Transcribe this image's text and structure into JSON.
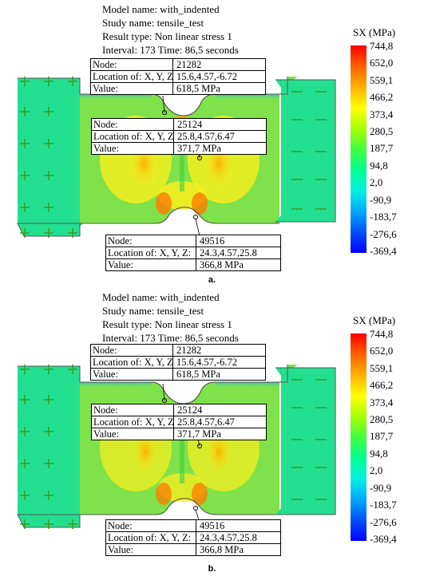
{
  "panels": [
    {
      "header": {
        "model": "Model name: with_indented",
        "study": "Study name: tensile_test",
        "result": "Result type: Non linear stress 1",
        "interval": "Interval: 173 Time: 86,5 seconds"
      },
      "legend": {
        "title": "SX (MPa)",
        "ticks": [
          "744,8",
          "652,0",
          "559,1",
          "466,2",
          "373,4",
          "280,5",
          "187,7",
          "94,8",
          "2,0",
          "-90,9",
          "-183,7",
          "-276,6",
          "-369,4"
        ]
      },
      "probes": [
        {
          "node_label": "Node:",
          "node": "21282",
          "loc_label": "Location of: X, Y, Z:",
          "loc": "15.6,4.57,-6.72",
          "val_label": "Value:",
          "val": "618,5 MPa"
        },
        {
          "node_label": "Node:",
          "node": "25124",
          "loc_label": "Location of: X, Y, Z:",
          "loc": "25.8,4.57,6.47",
          "val_label": "Value:",
          "val": "371,7 MPa"
        },
        {
          "node_label": "Node:",
          "node": "49516",
          "loc_label": "Location of: X, Y, Z:",
          "loc": "24.3,4.57,25.8",
          "val_label": "Value:",
          "val": "366,8 MPa"
        }
      ],
      "caption": "a."
    },
    {
      "header": {
        "model": "Model name: with_indented",
        "study": "Study name: tensile_test",
        "result": "Result type: Non linear stress 1",
        "interval": "Interval: 173 Time: 86,5 seconds"
      },
      "legend": {
        "title": "SX (MPa)",
        "ticks": [
          "744,8",
          "652,0",
          "559,1",
          "466,2",
          "373,4",
          "280,5",
          "187,7",
          "94,8",
          "2,0",
          "-90,9",
          "-183,7",
          "-276,6",
          "-369,4"
        ]
      },
      "probes": [
        {
          "node_label": "Node:",
          "node": "21282",
          "loc_label": "Location of: X, Y, Z:",
          "loc": "15.6,4.57,-6.72",
          "val_label": "Value:",
          "val": "618,5 MPa"
        },
        {
          "node_label": "Node:",
          "node": "25124",
          "loc_label": "Location of: X, Y, Z:",
          "loc": "25.8,4.57,6.47",
          "val_label": "Value:",
          "val": "371,7 MPa"
        },
        {
          "node_label": "Node:",
          "node": "49516",
          "loc_label": "Location of: X, Y, Z:",
          "loc": "24.3,4.57,25.8",
          "val_label": "Value:",
          "val": "366,8 MPa"
        }
      ],
      "caption": "b."
    }
  ],
  "colors": {
    "grip": "#22e090",
    "body": "#7fe24a",
    "hot": "#ff6a00",
    "warm": "#f4ee20",
    "arrow": "#3a9a20"
  }
}
